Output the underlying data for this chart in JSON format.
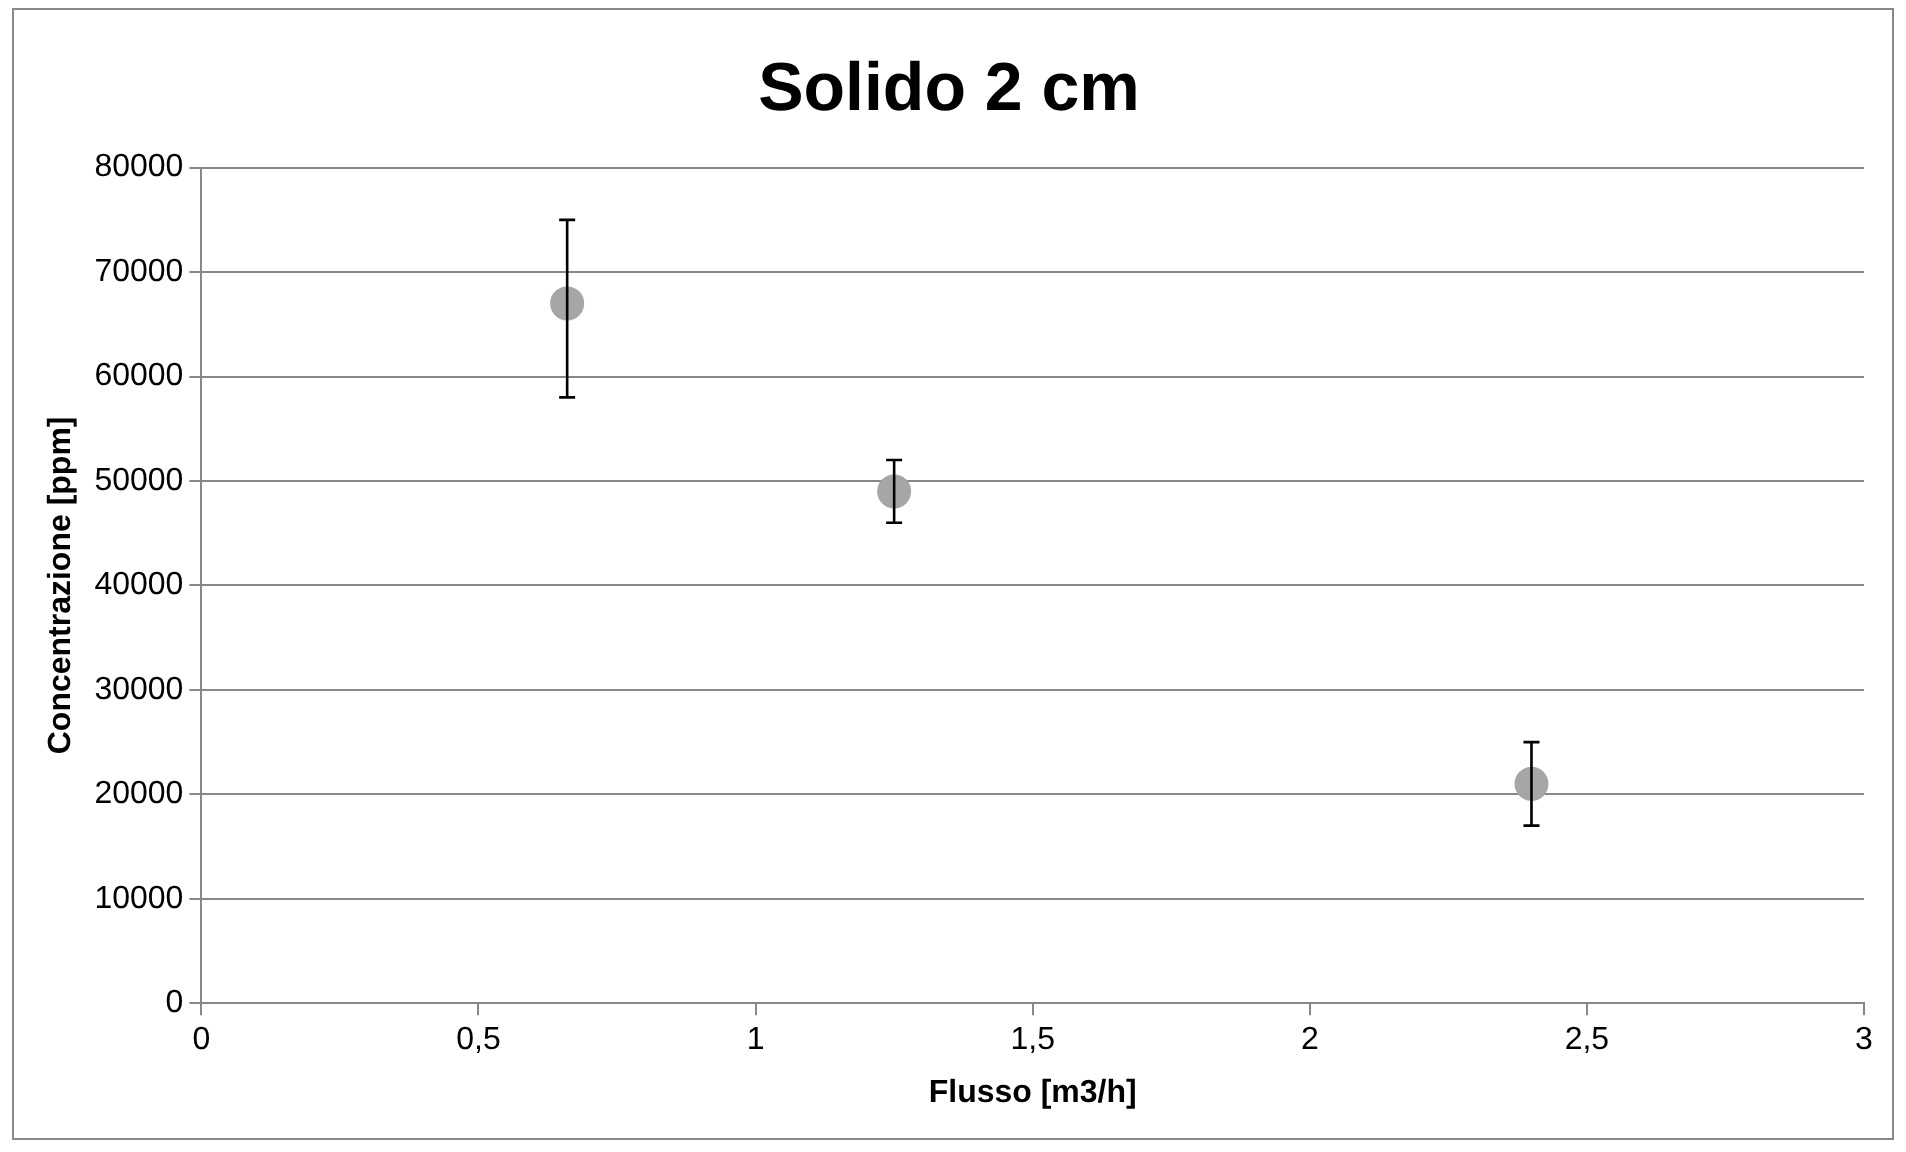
{
  "chart_data": {
    "type": "scatter",
    "title": "Solido 2 cm",
    "xlabel": "Flusso [m3/h]",
    "ylabel": "Concentrazione [ppm]",
    "x": [
      0.66,
      1.25,
      2.4
    ],
    "values": [
      67000,
      49000,
      21000
    ],
    "errors": [
      [
        58000,
        75000
      ],
      [
        46000,
        52000
      ],
      [
        17000,
        25000
      ]
    ],
    "color": "#a6a6a6",
    "xlim": [
      0,
      3
    ],
    "xticks": [
      0,
      {
        "value": 0.5,
        "label": "0,5"
      },
      1,
      {
        "value": 1.5,
        "label": "1,5"
      },
      2,
      {
        "value": 2.5,
        "label": "2,5"
      },
      3
    ],
    "ylim": [
      0,
      80000
    ],
    "yticks": [
      0,
      10000,
      20000,
      30000,
      40000,
      50000,
      60000,
      70000,
      80000
    ],
    "grid": "y",
    "legend": false,
    "marker": "circle"
  }
}
